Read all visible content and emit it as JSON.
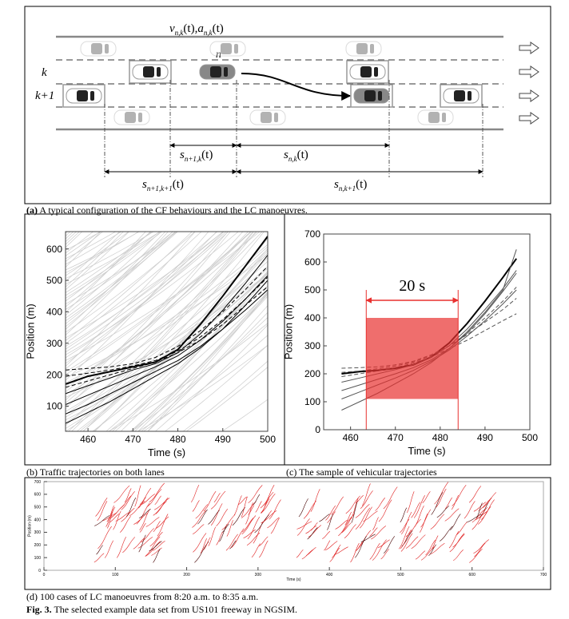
{
  "diagram": {
    "speed_label": {
      "v": "v",
      "v_sub": "n,k",
      "v_arg": "(t)",
      "sep": ",",
      "a": "a",
      "a_sub": "n,k",
      "a_arg": "(t)"
    },
    "vehicle_label": "n",
    "lane_k": "k",
    "lane_k1": "k+1",
    "gaps": [
      {
        "s": "s",
        "sub": "n+1,k",
        "arg": "(t)"
      },
      {
        "s": "s",
        "sub": "n,k",
        "arg": "(t)"
      },
      {
        "s": "s",
        "sub": "n+1,k+1",
        "arg": "(t)"
      },
      {
        "s": "s",
        "sub": "n,k+1",
        "arg": "(t)"
      }
    ],
    "caption_bold": "(a)",
    "caption": " A typical configuration of the CF behaviours and the LC manoeuvres."
  },
  "chart_data": [
    {
      "type": "line",
      "xlabel": "Time (s)",
      "ylabel": "Position (m)",
      "xlim": [
        455,
        500
      ],
      "ylim": [
        20,
        655
      ],
      "xticks": [
        460,
        470,
        480,
        490,
        500
      ],
      "yticks": [
        100,
        200,
        300,
        400,
        500,
        600
      ],
      "x": [
        455,
        460,
        465,
        470,
        475,
        480,
        485,
        490,
        495,
        500
      ],
      "series": [
        {
          "color": "#000000",
          "width": 2,
          "values": [
            170,
            195,
            210,
            225,
            240,
            280,
            360,
            450,
            545,
            640
          ]
        },
        {
          "color": "#000000",
          "width": 1,
          "dash": true,
          "values": [
            215,
            220,
            225,
            235,
            255,
            290,
            340,
            400,
            470,
            545
          ]
        },
        {
          "color": "#000000",
          "width": 1,
          "dash": true,
          "values": [
            195,
            205,
            215,
            228,
            245,
            275,
            320,
            375,
            440,
            510
          ]
        },
        {
          "color": "#000000",
          "width": 1,
          "values": [
            140,
            165,
            190,
            215,
            235,
            270,
            330,
            405,
            490,
            580
          ]
        },
        {
          "color": "#000000",
          "width": 1,
          "values": [
            105,
            135,
            165,
            195,
            225,
            260,
            310,
            370,
            440,
            515
          ]
        },
        {
          "color": "#000000",
          "width": 1,
          "dash": true,
          "values": [
            160,
            180,
            200,
            220,
            240,
            270,
            310,
            360,
            420,
            480
          ]
        },
        {
          "color": "#000000",
          "width": 1,
          "values": [
            75,
            105,
            140,
            175,
            210,
            245,
            290,
            345,
            405,
            470
          ]
        },
        {
          "color": "#000000",
          "width": 1,
          "values": [
            45,
            80,
            115,
            155,
            195,
            235,
            285,
            345,
            420,
            500
          ]
        }
      ]
    },
    {
      "type": "line",
      "xlabel": "Time (s)",
      "ylabel": "Position (m)",
      "xlim": [
        454,
        500
      ],
      "ylim": [
        0,
        700
      ],
      "xticks": [
        460,
        470,
        480,
        490,
        500
      ],
      "yticks": [
        0,
        100,
        200,
        300,
        400,
        500,
        600,
        700
      ],
      "x": [
        458,
        462,
        466,
        470,
        474,
        478,
        482,
        486,
        490,
        494,
        497
      ],
      "series": [
        {
          "color": "#000000",
          "width": 2,
          "values": [
            200,
            208,
            212,
            220,
            232,
            260,
            310,
            380,
            460,
            545,
            612
          ]
        },
        {
          "color": "#555555",
          "width": 1,
          "dash": true,
          "values": [
            220,
            222,
            225,
            232,
            245,
            268,
            300,
            340,
            385,
            430,
            470
          ]
        },
        {
          "color": "#555555",
          "width": 1,
          "dash": true,
          "values": [
            205,
            210,
            218,
            228,
            242,
            265,
            300,
            345,
            400,
            460,
            510
          ]
        },
        {
          "color": "#555555",
          "width": 1,
          "values": [
            170,
            185,
            200,
            215,
            232,
            258,
            300,
            360,
            430,
            505,
            570
          ]
        },
        {
          "color": "#555555",
          "width": 1,
          "values": [
            140,
            160,
            180,
            200,
            222,
            250,
            290,
            345,
            415,
            495,
            560
          ]
        },
        {
          "color": "#555555",
          "width": 1,
          "values": [
            110,
            135,
            160,
            185,
            212,
            245,
            285,
            335,
            390,
            450,
            500
          ]
        },
        {
          "color": "#555555",
          "width": 1,
          "values": [
            70,
            100,
            130,
            165,
            200,
            240,
            290,
            350,
            420,
            500,
            645
          ]
        },
        {
          "color": "#555555",
          "width": 1,
          "dash": true,
          "values": [
            190,
            200,
            210,
            222,
            238,
            260,
            290,
            320,
            355,
            390,
            415
          ]
        }
      ],
      "highlight": {
        "xlim": [
          463.5,
          484
        ],
        "ylim": [
          110,
          400
        ],
        "label": "20 s",
        "color": "#e8302f"
      }
    },
    {
      "type": "line",
      "xlabel": "Time (s)",
      "ylabel": "Position (m)",
      "xlim": [
        0,
        700
      ],
      "ylim": [
        0,
        700
      ],
      "xticks": [
        0,
        100,
        200,
        300,
        400,
        500,
        600,
        700
      ],
      "yticks": [
        0,
        100,
        200,
        300,
        400,
        500,
        600,
        700
      ],
      "color": "#e02020"
    }
  ],
  "captions": [
    "(b) Traffic trajectories on both lanes",
    "(c) The sample of vehicular trajectories",
    "(d) 100 cases of LC manoeuvres from 8:20 a.m. to 8:35 a.m."
  ],
  "figure_caption": {
    "label": "Fig. 3.",
    "text": " The selected example data set from US101 freeway in NGSIM."
  }
}
